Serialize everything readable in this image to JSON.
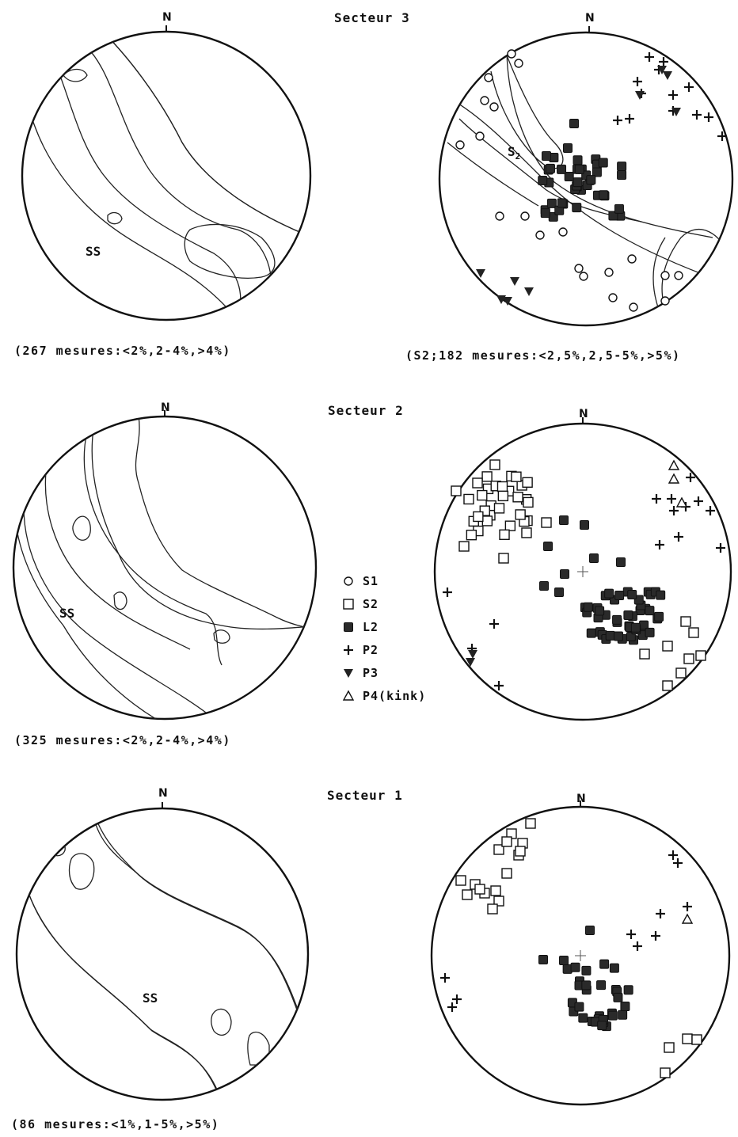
{
  "north_label": "N",
  "sectors": [
    {
      "title": "Secteur 3",
      "contour_label": "SS",
      "contour_caption": "(267 mesures:<2%,2-4%,>4%)",
      "points_caption": "(S2;182 mesures:<2,5%,2,5-5%,>5%)",
      "points_label": "S2"
    },
    {
      "title": "Secteur 2",
      "contour_label": "SS",
      "contour_caption": "(325 mesures:<2%,2-4%,>4%)"
    },
    {
      "title": "Secteur 1",
      "contour_label": "SS",
      "contour_caption": "(86 mesures:<1%,1-5%,>5%)"
    }
  ],
  "legend": [
    {
      "symbol": "circle",
      "label": "S1"
    },
    {
      "symbol": "square",
      "label": "S2"
    },
    {
      "symbol": "filled-square",
      "label": "L2"
    },
    {
      "symbol": "plus",
      "label": "P2"
    },
    {
      "symbol": "filled-triangle-down",
      "label": "P3"
    },
    {
      "symbol": "triangle",
      "label": "P4(kink)"
    }
  ]
}
